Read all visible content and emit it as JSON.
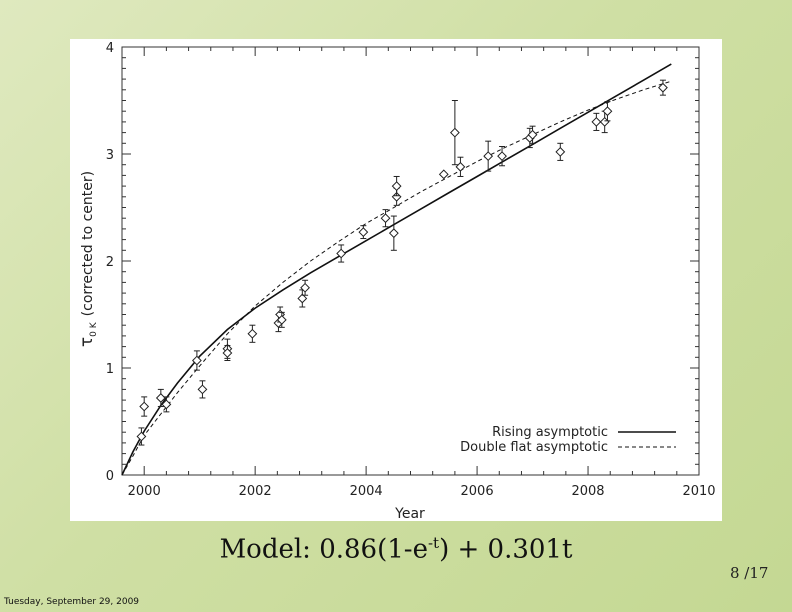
{
  "caption": {
    "prefix": "Model:  0.86(1-e",
    "superscript": "-t",
    "suffix": ") + 0.301t"
  },
  "page_number": "8  /17",
  "footer_date": "Tuesday, September 29, 2009",
  "chart_data": {
    "type": "scatter",
    "xlabel": "Year",
    "ylabel": "τ",
    "ylabel_subscript": "0 K",
    "ylabel_suffix": "(corrected to center)",
    "xlim": [
      1999.6,
      2010
    ],
    "ylim": [
      0,
      4
    ],
    "x_ticks": [
      2000,
      2002,
      2004,
      2006,
      2008,
      2010
    ],
    "x_tick_labels": [
      "2000",
      "2002",
      "2004",
      "2006",
      "2008",
      "2010"
    ],
    "y_ticks": [
      0,
      1,
      2,
      3,
      4
    ],
    "y_tick_labels": [
      "0",
      "1",
      "2",
      "3",
      "4"
    ],
    "legend_position": "bottom-right",
    "series": [
      {
        "name": "Rising asymptotic",
        "kind": "line",
        "line_style": "solid",
        "x": [
          1999.6,
          1999.8,
          2000.0,
          2000.3,
          2000.6,
          2001.0,
          2001.5,
          2002.0,
          2002.5,
          2003.0,
          2003.5,
          2004.0,
          2004.5,
          2005.0,
          2005.5,
          2006.0,
          2006.5,
          2007.0,
          2007.5,
          2008.0,
          2008.5,
          2009.0,
          2009.5
        ],
        "y": [
          0.0,
          0.22,
          0.41,
          0.65,
          0.86,
          1.11,
          1.36,
          1.56,
          1.73,
          1.89,
          2.04,
          2.19,
          2.34,
          2.49,
          2.64,
          2.79,
          2.94,
          3.09,
          3.24,
          3.39,
          3.54,
          3.69,
          3.84
        ]
      },
      {
        "name": "Double flat asymptotic",
        "kind": "line",
        "line_style": "dashed",
        "x": [
          1999.6,
          1999.8,
          2000.0,
          2000.3,
          2000.6,
          2001.0,
          2001.5,
          2002.0,
          2002.5,
          2003.0,
          2003.5,
          2004.0,
          2004.5,
          2005.0,
          2005.5,
          2006.0,
          2006.5,
          2007.0,
          2007.5,
          2008.0,
          2008.5,
          2009.0,
          2009.5
        ],
        "y": [
          0.0,
          0.18,
          0.37,
          0.57,
          0.77,
          1.02,
          1.32,
          1.58,
          1.8,
          2.0,
          2.18,
          2.35,
          2.5,
          2.65,
          2.79,
          2.93,
          3.06,
          3.18,
          3.3,
          3.41,
          3.51,
          3.6,
          3.68
        ]
      },
      {
        "name": "",
        "kind": "points",
        "points": [
          {
            "x": 1999.95,
            "y": 0.36,
            "err": 0.08
          },
          {
            "x": 2000.0,
            "y": 0.64,
            "err": 0.09
          },
          {
            "x": 2000.3,
            "y": 0.72,
            "err": 0.08
          },
          {
            "x": 2000.4,
            "y": 0.66,
            "err": 0.07
          },
          {
            "x": 2000.95,
            "y": 1.07,
            "err": 0.09
          },
          {
            "x": 2001.05,
            "y": 0.8,
            "err": 0.08
          },
          {
            "x": 2001.5,
            "y": 1.18,
            "err": 0.09
          },
          {
            "x": 2001.5,
            "y": 1.14,
            "err": 0.07
          },
          {
            "x": 2001.95,
            "y": 1.32,
            "err": 0.08
          },
          {
            "x": 2002.42,
            "y": 1.42,
            "err": 0.08
          },
          {
            "x": 2002.45,
            "y": 1.5,
            "err": 0.07
          },
          {
            "x": 2002.48,
            "y": 1.45,
            "err": 0.07
          },
          {
            "x": 2002.85,
            "y": 1.65,
            "err": 0.08
          },
          {
            "x": 2002.9,
            "y": 1.75,
            "err": 0.07
          },
          {
            "x": 2003.55,
            "y": 2.07,
            "err": 0.08
          },
          {
            "x": 2003.95,
            "y": 2.27,
            "err": 0.06
          },
          {
            "x": 2004.35,
            "y": 2.4,
            "err": 0.08
          },
          {
            "x": 2004.5,
            "y": 2.26,
            "err": 0.16
          },
          {
            "x": 2004.55,
            "y": 2.6,
            "err": 0.08
          },
          {
            "x": 2004.55,
            "y": 2.7,
            "err": 0.09
          },
          {
            "x": 2005.4,
            "y": 2.81,
            "err": 0.0
          },
          {
            "x": 2005.6,
            "y": 3.2,
            "err": 0.3
          },
          {
            "x": 2005.7,
            "y": 2.88,
            "err": 0.09
          },
          {
            "x": 2006.2,
            "y": 2.98,
            "err": 0.14
          },
          {
            "x": 2006.45,
            "y": 2.98,
            "err": 0.09
          },
          {
            "x": 2006.95,
            "y": 3.15,
            "err": 0.09
          },
          {
            "x": 2007.0,
            "y": 3.18,
            "err": 0.08
          },
          {
            "x": 2007.5,
            "y": 3.02,
            "err": 0.08
          },
          {
            "x": 2008.15,
            "y": 3.3,
            "err": 0.08
          },
          {
            "x": 2008.3,
            "y": 3.3,
            "err": 0.1
          },
          {
            "x": 2008.35,
            "y": 3.4,
            "err": 0.09
          },
          {
            "x": 2009.35,
            "y": 3.62,
            "err": 0.07
          }
        ]
      }
    ]
  }
}
